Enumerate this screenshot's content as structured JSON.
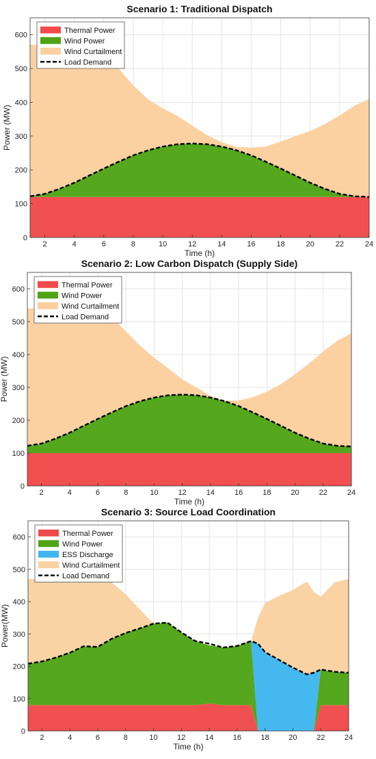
{
  "chart_data": [
    {
      "type": "area",
      "title": "Scenario 1: Traditional Dispatch",
      "xlabel": "Time (h)",
      "ylabel": "Power (MW)",
      "xlim": [
        1,
        24
      ],
      "ylim": [
        0,
        650
      ],
      "xticks": [
        2,
        4,
        6,
        8,
        10,
        12,
        14,
        16,
        18,
        20,
        22,
        24
      ],
      "yticks": [
        0,
        100,
        200,
        300,
        400,
        500,
        600
      ],
      "grid": true,
      "legend_position": "top-left",
      "x": [
        1,
        2,
        3,
        4,
        5,
        6,
        7,
        8,
        9,
        10,
        11,
        12,
        13,
        14,
        15,
        16,
        17,
        18,
        19,
        20,
        21,
        22,
        23,
        24
      ],
      "series": [
        {
          "name": "Thermal Power",
          "kind": "area",
          "color": "#f04a4a",
          "values": [
            120,
            120,
            120,
            120,
            120,
            120,
            120,
            120,
            120,
            120,
            120,
            120,
            120,
            120,
            120,
            120,
            120,
            120,
            120,
            120,
            120,
            120,
            120,
            120
          ]
        },
        {
          "name": "Wind Power",
          "kind": "area",
          "color": "#4fa416",
          "values": [
            2,
            9,
            24,
            42,
            63,
            84,
            104,
            123,
            138,
            149,
            156,
            158,
            156,
            149,
            138,
            123,
            104,
            84,
            63,
            42,
            24,
            9,
            2,
            0
          ]
        },
        {
          "name": "Wind Curtailment",
          "kind": "area",
          "color": "#fccf9f",
          "values": [
            448,
            441,
            426,
            403,
            367,
            351,
            276,
            207,
            151,
            113,
            84,
            53,
            27,
            13,
            10,
            23,
            45,
            80,
            117,
            153,
            192,
            232,
            268,
            290
          ]
        },
        {
          "name": "Load Demand",
          "kind": "line",
          "color": "#000000",
          "values": [
            122,
            129,
            144,
            162,
            183,
            204,
            224,
            243,
            258,
            269,
            276,
            278,
            276,
            269,
            258,
            243,
            224,
            204,
            183,
            162,
            144,
            129,
            122,
            120
          ]
        }
      ]
    },
    {
      "type": "area",
      "title": "Scenario 2: Low Carbon Dispatch (Supply Side)",
      "xlabel": "Time (h)",
      "ylabel": "Power (MW)",
      "xlim": [
        1,
        24
      ],
      "ylim": [
        0,
        650
      ],
      "xticks": [
        2,
        4,
        6,
        8,
        10,
        12,
        14,
        16,
        18,
        20,
        22,
        24
      ],
      "yticks": [
        0,
        100,
        200,
        300,
        400,
        500,
        600
      ],
      "grid": true,
      "legend_position": "top-left",
      "x": [
        1,
        2,
        3,
        4,
        5,
        6,
        7,
        8,
        9,
        10,
        11,
        12,
        13,
        14,
        15,
        16,
        17,
        18,
        19,
        20,
        21,
        22,
        23,
        24
      ],
      "series": [
        {
          "name": "Thermal Power",
          "kind": "area",
          "color": "#f04a4a",
          "values": [
            100,
            100,
            100,
            100,
            100,
            100,
            100,
            100,
            100,
            100,
            100,
            100,
            100,
            100,
            100,
            100,
            100,
            100,
            100,
            100,
            100,
            100,
            100,
            100
          ]
        },
        {
          "name": "Wind Power",
          "kind": "area",
          "color": "#4fa416",
          "values": [
            22,
            29,
            44,
            62,
            83,
            104,
            124,
            143,
            158,
            169,
            176,
            178,
            176,
            169,
            158,
            143,
            124,
            104,
            83,
            62,
            44,
            29,
            22,
            20
          ]
        },
        {
          "name": "Wind Curtailment",
          "kind": "area",
          "color": "#fccf9f",
          "values": [
            418,
            411,
            396,
            378,
            357,
            336,
            291,
            227,
            169,
            121,
            82,
            46,
            24,
            5,
            2,
            17,
            46,
            83,
            127,
            178,
            229,
            280,
            320,
            345
          ]
        },
        {
          "name": "Load Demand",
          "kind": "line",
          "color": "#000000",
          "values": [
            122,
            129,
            144,
            162,
            183,
            204,
            224,
            243,
            258,
            269,
            276,
            278,
            276,
            269,
            258,
            243,
            224,
            204,
            183,
            162,
            144,
            129,
            122,
            120
          ]
        }
      ]
    },
    {
      "type": "area",
      "title": "Scenario 3: Source Load Coordination",
      "xlabel": "Time (h)",
      "ylabel": "Power(MW)",
      "xlim": [
        1,
        24
      ],
      "ylim": [
        0,
        650
      ],
      "xticks": [
        2,
        4,
        6,
        8,
        10,
        12,
        14,
        16,
        18,
        20,
        22,
        24
      ],
      "yticks": [
        0,
        100,
        200,
        300,
        400,
        500,
        600
      ],
      "grid": true,
      "legend_position": "top-left",
      "x": [
        1,
        2,
        3,
        4,
        5,
        6,
        7,
        8,
        9,
        10,
        11,
        12,
        13,
        14,
        15,
        16,
        17,
        17.5,
        18,
        19,
        20,
        21,
        21.5,
        22,
        23,
        24
      ],
      "series": [
        {
          "name": "Thermal Power",
          "kind": "area",
          "color": "#f04a4a",
          "values": [
            80,
            80,
            80,
            80,
            80,
            80,
            80,
            80,
            80,
            80,
            80,
            80,
            80,
            85,
            80,
            80,
            80,
            0,
            0,
            0,
            0,
            0,
            0,
            80,
            80,
            80
          ]
        },
        {
          "name": "Wind Power",
          "kind": "area",
          "color": "#4fa416",
          "values": [
            128,
            135,
            147,
            162,
            182,
            180,
            205,
            223,
            237,
            252,
            255,
            225,
            198,
            180,
            178,
            183,
            198,
            0,
            0,
            0,
            0,
            0,
            0,
            110,
            103,
            100
          ]
        },
        {
          "name": "ESS Discharge",
          "kind": "area",
          "color": "#3fb6ef",
          "values": [
            0,
            0,
            0,
            0,
            0,
            0,
            0,
            0,
            0,
            0,
            0,
            0,
            0,
            0,
            0,
            0,
            0,
            270,
            244,
            220,
            196,
            175,
            180,
            0,
            0,
            0
          ]
        },
        {
          "name": "Wind Curtailment",
          "kind": "area",
          "color": "#fad2a2",
          "values": [
            262,
            255,
            243,
            228,
            208,
            210,
            175,
            120,
            60,
            0,
            0,
            0,
            0,
            0,
            0,
            0,
            0,
            80,
            152,
            198,
            240,
            287,
            250,
            225,
            277,
            290
          ]
        },
        {
          "name": "Load Demand",
          "kind": "line",
          "color": "#000000",
          "values": [
            208,
            215,
            227,
            242,
            262,
            260,
            285,
            303,
            317,
            332,
            335,
            305,
            278,
            270,
            258,
            263,
            278,
            270,
            244,
            220,
            196,
            175,
            180,
            190,
            183,
            180
          ]
        }
      ]
    }
  ]
}
